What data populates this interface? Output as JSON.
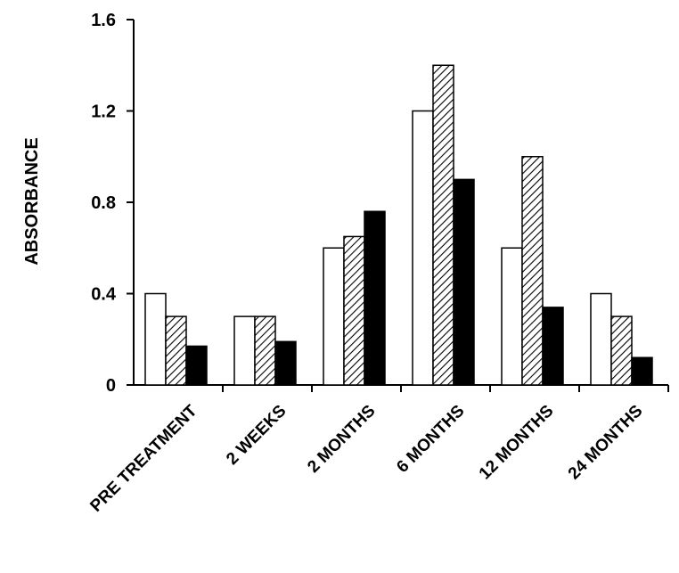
{
  "chart_data": {
    "type": "bar",
    "title": "",
    "xlabel": "",
    "ylabel": "ABSORBANCE",
    "ylim": [
      0,
      1.6
    ],
    "yticks": [
      "0",
      "0.4",
      "0.8",
      "1.2",
      "1.6"
    ],
    "grid": false,
    "categories": [
      "PRE TREATMENT",
      "2 WEEKS",
      "2 MONTHS",
      "6 MONTHS",
      "12 MONTHS",
      "24 MONTHS"
    ],
    "series": [
      {
        "fill": "white",
        "color": "#ffffff",
        "values": [
          0.4,
          0.3,
          0.6,
          1.2,
          0.6,
          0.4
        ]
      },
      {
        "fill": "hatched",
        "color": "#888888",
        "values": [
          0.3,
          0.3,
          0.65,
          1.4,
          1.0,
          0.3
        ]
      },
      {
        "fill": "black",
        "color": "#000000",
        "values": [
          0.17,
          0.19,
          0.76,
          0.9,
          0.34,
          0.12
        ]
      }
    ]
  }
}
